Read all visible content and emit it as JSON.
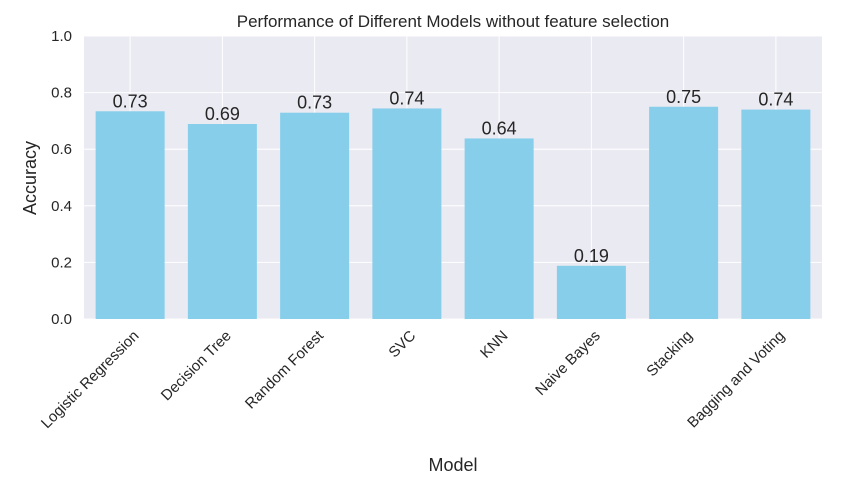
{
  "chart_data": {
    "type": "bar",
    "title": "Performance of Different Models without feature selection",
    "xlabel": "Model",
    "ylabel": "Accuracy",
    "categories": [
      "Logistic Regression",
      "Decision Tree",
      "Random Forest",
      "SVC",
      "KNN",
      "Naive Bayes",
      "Stacking",
      "Bagging and Voting"
    ],
    "values": [
      0.734,
      0.689,
      0.729,
      0.744,
      0.638,
      0.188,
      0.75,
      0.74
    ],
    "value_labels": [
      "0.73",
      "0.69",
      "0.73",
      "0.74",
      "0.64",
      "0.19",
      "0.75",
      "0.74"
    ],
    "ylim": [
      0,
      1.0
    ],
    "yticks": [
      "0.0",
      "0.2",
      "0.4",
      "0.6",
      "0.8",
      "1.0"
    ],
    "grid": true,
    "bar_color": "#87ceeb",
    "background_color": "#eaeaf2",
    "grid_color": "#ffffff"
  }
}
